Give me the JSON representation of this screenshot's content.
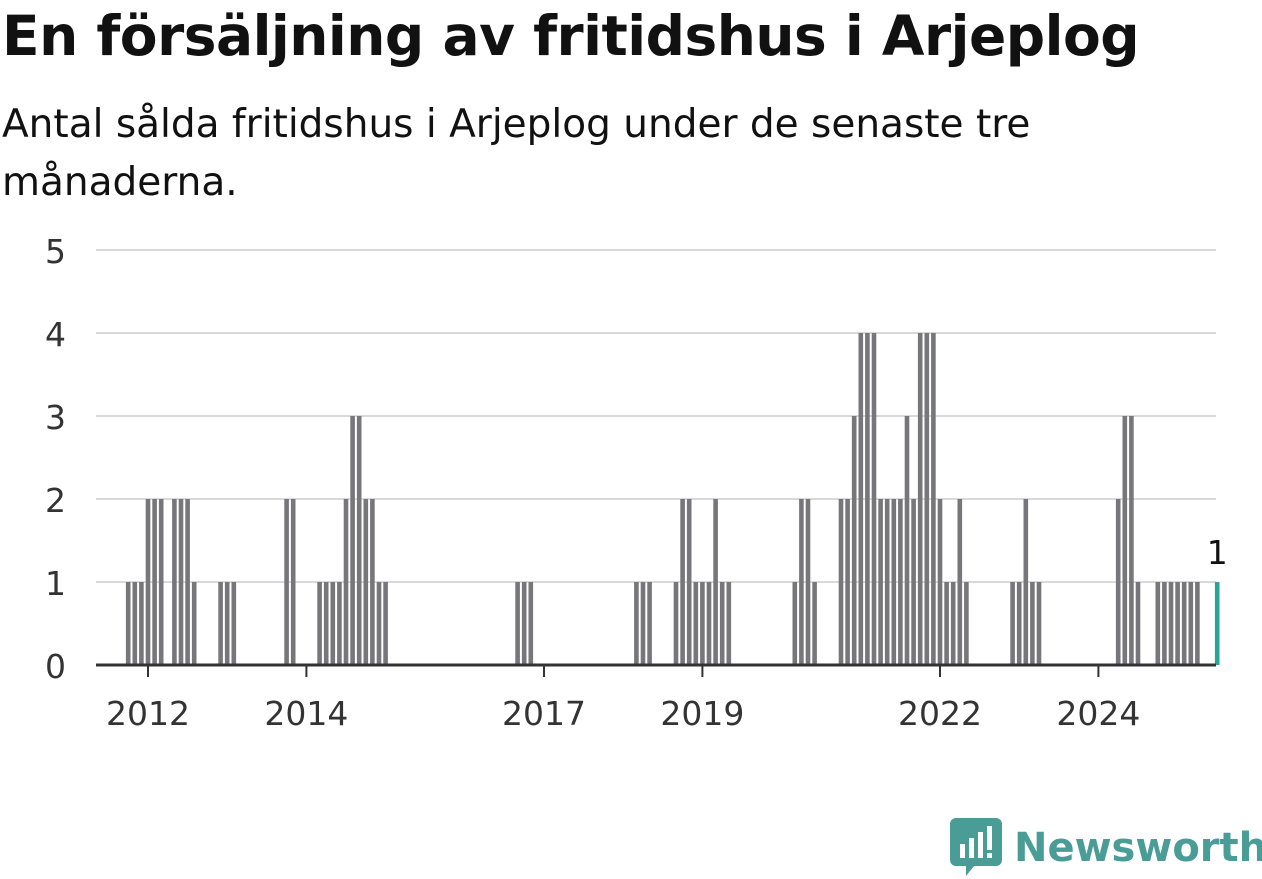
{
  "title": "En försäljning av fritidshus i Arjeplog",
  "subtitle": "Antal sålda fritidshus i Arjeplog under de senaste tre månaderna.",
  "brand": {
    "name": "Newsworthy",
    "icon": "newsworthy-logo-icon",
    "color": "#4a9d97"
  },
  "chart_data": {
    "type": "bar",
    "title": "En försäljning av fritidshus i Arjeplog",
    "subtitle": "Antal sålda fritidshus i Arjeplog under de senaste tre månaderna.",
    "xlabel": "",
    "ylabel": "",
    "ylim": [
      0,
      5
    ],
    "yticks": [
      0,
      1,
      2,
      3,
      4,
      5
    ],
    "xticks": [
      "2012",
      "2014",
      "2017",
      "2019",
      "2022",
      "2024"
    ],
    "grid": true,
    "legend": "none",
    "colors": {
      "bar": "#77767b",
      "highlight": "#2aa39a",
      "grid": "#d9d9d9",
      "axis": "#333333"
    },
    "series": [
      {
        "start": "2011-10",
        "frequency": "monthly",
        "values": [
          1,
          1,
          1,
          2,
          2,
          2,
          0,
          2,
          2,
          2,
          1,
          0,
          0,
          0,
          1,
          1,
          1,
          0,
          0,
          0,
          0,
          0,
          0,
          0,
          2,
          2,
          0,
          0,
          0,
          1,
          1,
          1,
          1,
          2,
          3,
          3,
          2,
          2,
          1,
          1,
          0,
          0,
          0,
          0,
          0,
          0,
          0,
          0,
          0,
          0,
          0,
          0,
          0,
          0,
          0,
          0,
          0,
          0,
          0,
          1,
          1,
          1,
          0,
          0,
          0,
          0,
          0,
          0,
          0,
          0,
          0,
          0,
          0,
          0,
          0,
          0,
          0,
          1,
          1,
          1,
          0,
          0,
          0,
          1,
          2,
          2,
          1,
          1,
          1,
          2,
          1,
          1,
          0,
          0,
          0,
          0,
          0,
          0,
          0,
          0,
          0,
          1,
          2,
          2,
          1,
          0,
          0,
          0,
          2,
          2,
          3,
          4,
          4,
          4,
          2,
          2,
          2,
          2,
          3,
          2,
          4,
          4,
          4,
          2,
          1,
          1,
          2,
          1,
          0,
          0,
          0,
          0,
          0,
          0,
          1,
          1,
          2,
          1,
          1,
          0,
          0,
          0,
          0,
          0,
          0,
          0,
          0,
          0,
          0,
          0,
          2,
          3,
          3,
          1,
          0,
          0,
          1,
          1,
          1,
          1,
          1,
          1,
          1,
          0,
          0,
          1
        ],
        "highlight_last": true,
        "last_label": "1"
      }
    ]
  }
}
